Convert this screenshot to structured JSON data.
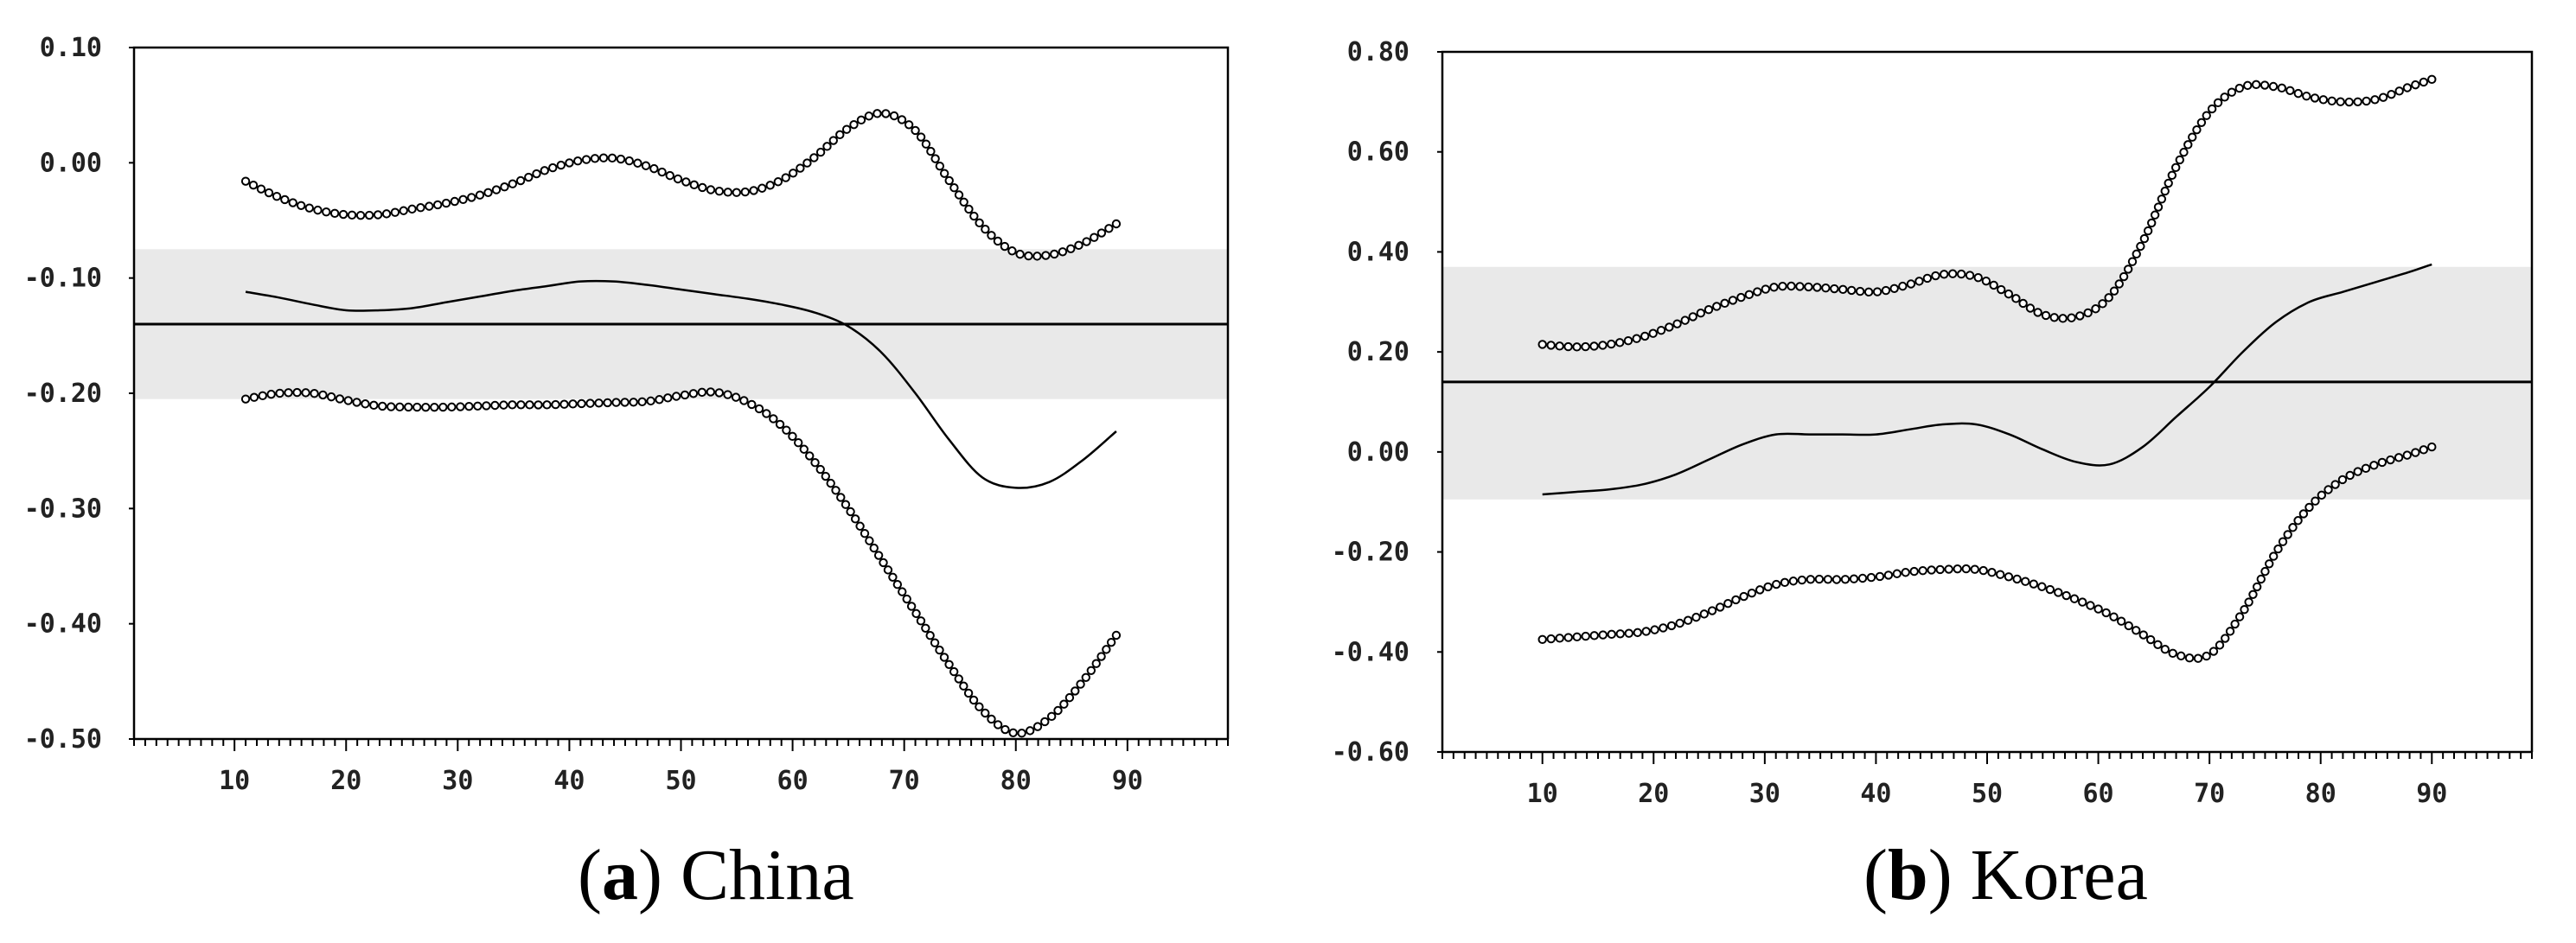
{
  "chart_data": [
    {
      "type": "line",
      "id": "china",
      "caption_letter": "a",
      "caption_text": "China",
      "xlim": [
        1,
        99
      ],
      "ylim": [
        -0.5,
        0.1
      ],
      "x_ticks": [
        10,
        20,
        30,
        40,
        50,
        60,
        70,
        80,
        90
      ],
      "x_tick_labels": [
        "10",
        "20",
        "30",
        "40",
        "50",
        "60",
        "70",
        "80",
        "90"
      ],
      "y_ticks": [
        0.1,
        0.0,
        -0.1,
        -0.2,
        -0.3,
        -0.4,
        -0.5
      ],
      "y_tick_labels": [
        "0.10",
        "0.00",
        "-0.10",
        "-0.20",
        "-0.30",
        "-0.40",
        "-0.50"
      ],
      "band": [
        -0.205,
        -0.075
      ],
      "reference_line": -0.14,
      "x": [
        11,
        14,
        17,
        20,
        23,
        26,
        29,
        32,
        35,
        38,
        41,
        44,
        47,
        50,
        53,
        56,
        59,
        62,
        65,
        68,
        71,
        74,
        77,
        80,
        83,
        86,
        89
      ],
      "series": [
        {
          "name": "upper",
          "markers": true,
          "values": [
            -0.016,
            -0.03,
            -0.04,
            -0.045,
            -0.045,
            -0.04,
            -0.035,
            -0.028,
            -0.018,
            -0.006,
            0.002,
            0.004,
            -0.003,
            -0.015,
            -0.024,
            -0.025,
            -0.015,
            0.005,
            0.03,
            0.043,
            0.028,
            -0.015,
            -0.055,
            -0.078,
            -0.08,
            -0.07,
            -0.053
          ]
        },
        {
          "name": "estimate",
          "markers": false,
          "values": [
            -0.112,
            -0.117,
            -0.123,
            -0.128,
            -0.128,
            -0.126,
            -0.121,
            -0.116,
            -0.111,
            -0.107,
            -0.103,
            -0.103,
            -0.106,
            -0.11,
            -0.114,
            -0.118,
            -0.123,
            -0.13,
            -0.142,
            -0.165,
            -0.2,
            -0.24,
            -0.273,
            -0.282,
            -0.277,
            -0.258,
            -0.233
          ]
        },
        {
          "name": "lower",
          "markers": true,
          "values": [
            -0.205,
            -0.2,
            -0.2,
            -0.206,
            -0.211,
            -0.212,
            -0.212,
            -0.211,
            -0.21,
            -0.21,
            -0.209,
            -0.208,
            -0.207,
            -0.202,
            -0.199,
            -0.208,
            -0.228,
            -0.26,
            -0.3,
            -0.345,
            -0.39,
            -0.435,
            -0.475,
            -0.495,
            -0.482,
            -0.45,
            -0.41
          ]
        }
      ]
    },
    {
      "type": "line",
      "id": "korea",
      "caption_letter": "b",
      "caption_text": "Korea",
      "xlim": [
        1,
        99
      ],
      "ylim": [
        -0.6,
        0.8
      ],
      "x_ticks": [
        10,
        20,
        30,
        40,
        50,
        60,
        70,
        80,
        90
      ],
      "x_tick_labels": [
        "10",
        "20",
        "30",
        "40",
        "50",
        "60",
        "70",
        "80",
        "90"
      ],
      "y_ticks": [
        0.8,
        0.6,
        0.4,
        0.2,
        0.0,
        -0.2,
        -0.4,
        -0.6
      ],
      "y_tick_labels": [
        "0.80",
        "0.60",
        "0.40",
        "0.20",
        "0.00",
        "-0.20",
        "-0.40",
        "-0.60"
      ],
      "band": [
        -0.095,
        0.37
      ],
      "reference_line": 0.14,
      "x": [
        10,
        13,
        16,
        19,
        22,
        25,
        28,
        31,
        34,
        37,
        40,
        43,
        46,
        49,
        52,
        55,
        58,
        61,
        64,
        67,
        70,
        73,
        76,
        79,
        82,
        85,
        88,
        90
      ],
      "series": [
        {
          "name": "upper",
          "markers": true,
          "values": [
            0.215,
            0.21,
            0.215,
            0.23,
            0.255,
            0.285,
            0.31,
            0.33,
            0.33,
            0.325,
            0.32,
            0.335,
            0.355,
            0.35,
            0.315,
            0.275,
            0.27,
            0.31,
            0.42,
            0.57,
            0.68,
            0.73,
            0.73,
            0.71,
            0.7,
            0.705,
            0.73,
            0.745
          ]
        },
        {
          "name": "estimate",
          "markers": false,
          "values": [
            -0.085,
            -0.08,
            -0.075,
            -0.065,
            -0.045,
            -0.015,
            0.015,
            0.035,
            0.035,
            0.035,
            0.035,
            0.045,
            0.055,
            0.055,
            0.035,
            0.005,
            -0.02,
            -0.025,
            0.01,
            0.07,
            0.13,
            0.2,
            0.26,
            0.3,
            0.32,
            0.34,
            0.36,
            0.375
          ]
        },
        {
          "name": "lower",
          "markers": true,
          "values": [
            -0.375,
            -0.37,
            -0.365,
            -0.36,
            -0.345,
            -0.32,
            -0.29,
            -0.265,
            -0.255,
            -0.255,
            -0.25,
            -0.24,
            -0.235,
            -0.235,
            -0.25,
            -0.27,
            -0.295,
            -0.325,
            -0.365,
            -0.405,
            -0.405,
            -0.32,
            -0.2,
            -0.11,
            -0.055,
            -0.025,
            -0.005,
            0.01
          ]
        }
      ]
    }
  ]
}
